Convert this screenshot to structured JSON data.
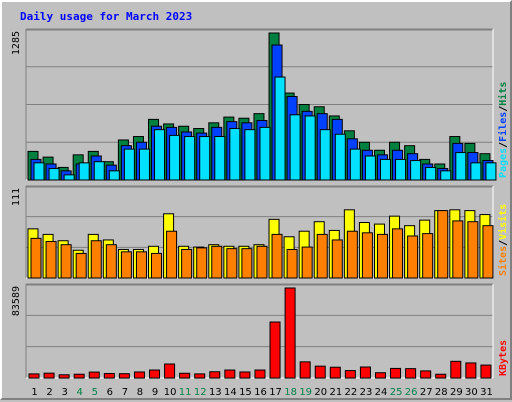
{
  "title": "Daily usage for March 2023",
  "colors": {
    "hits": "#008040",
    "files": "#0040ff",
    "pages": "#00e0ff",
    "visits": "#ffff00",
    "sites": "#ff8000",
    "kbytes": "#ff0000",
    "weekend_day": "#00804a",
    "weekday": "#000000"
  },
  "chart_data": [
    {
      "type": "bar",
      "ymax_label": "1285",
      "ylim": [
        0,
        1285
      ],
      "right_labels": [
        "Pages",
        "/",
        "Files",
        "/",
        "Hits"
      ],
      "series": [
        {
          "name": "Hits",
          "values": [
            250,
            200,
            110,
            220,
            250,
            160,
            350,
            380,
            530,
            490,
            470,
            450,
            500,
            550,
            540,
            580,
            1285,
            760,
            660,
            640,
            560,
            430,
            330,
            260,
            330,
            300,
            180,
            140,
            380,
            320,
            230
          ]
        },
        {
          "name": "Files",
          "values": [
            180,
            140,
            80,
            140,
            210,
            130,
            300,
            330,
            470,
            460,
            420,
            410,
            460,
            510,
            500,
            520,
            1180,
            730,
            600,
            580,
            530,
            360,
            260,
            220,
            260,
            230,
            140,
            100,
            320,
            240,
            170
          ]
        },
        {
          "name": "Pages",
          "values": [
            150,
            100,
            45,
            150,
            160,
            80,
            270,
            270,
            440,
            390,
            380,
            380,
            380,
            450,
            440,
            460,
            900,
            570,
            560,
            440,
            400,
            270,
            210,
            180,
            180,
            170,
            110,
            80,
            240,
            150,
            150
          ]
        }
      ]
    },
    {
      "type": "bar",
      "ymax_label": "111",
      "ylim": [
        0,
        111
      ],
      "right_labels": [
        "Sites",
        "/",
        "Visits"
      ],
      "series": [
        {
          "name": "Visits",
          "values": [
            62,
            55,
            47,
            35,
            55,
            48,
            36,
            36,
            40,
            81,
            40,
            39,
            42,
            40,
            40,
            42,
            74,
            52,
            59,
            71,
            60,
            86,
            70,
            68,
            78,
            66,
            73,
            85,
            86,
            85,
            80
          ]
        },
        {
          "name": "Sites",
          "values": [
            50,
            46,
            42,
            31,
            47,
            42,
            33,
            33,
            31,
            59,
            36,
            38,
            40,
            37,
            37,
            40,
            55,
            36,
            39,
            55,
            48,
            59,
            57,
            55,
            62,
            53,
            56,
            85,
            72,
            71,
            66
          ]
        }
      ]
    },
    {
      "type": "bar",
      "ymax_label": "83589",
      "ylim": [
        0,
        83589
      ],
      "right_labels": [
        "KBytes"
      ],
      "series": [
        {
          "name": "KBytes",
          "values": [
            3800,
            4500,
            3000,
            3500,
            5500,
            4200,
            4000,
            5600,
            7400,
            13000,
            4400,
            3800,
            5800,
            7400,
            5600,
            7400,
            52000,
            83589,
            15000,
            11000,
            10000,
            6900,
            10200,
            4900,
            8900,
            8700,
            6600,
            3500,
            15500,
            14000,
            12000
          ]
        }
      ]
    }
  ],
  "days": [
    "1",
    "2",
    "3",
    "4",
    "5",
    "6",
    "7",
    "8",
    "9",
    "10",
    "11",
    "12",
    "13",
    "14",
    "15",
    "16",
    "17",
    "18",
    "19",
    "20",
    "21",
    "22",
    "23",
    "24",
    "25",
    "26",
    "27",
    "28",
    "29",
    "30",
    "31"
  ],
  "weekend_days": [
    4,
    5,
    11,
    12,
    18,
    19,
    25,
    26
  ]
}
